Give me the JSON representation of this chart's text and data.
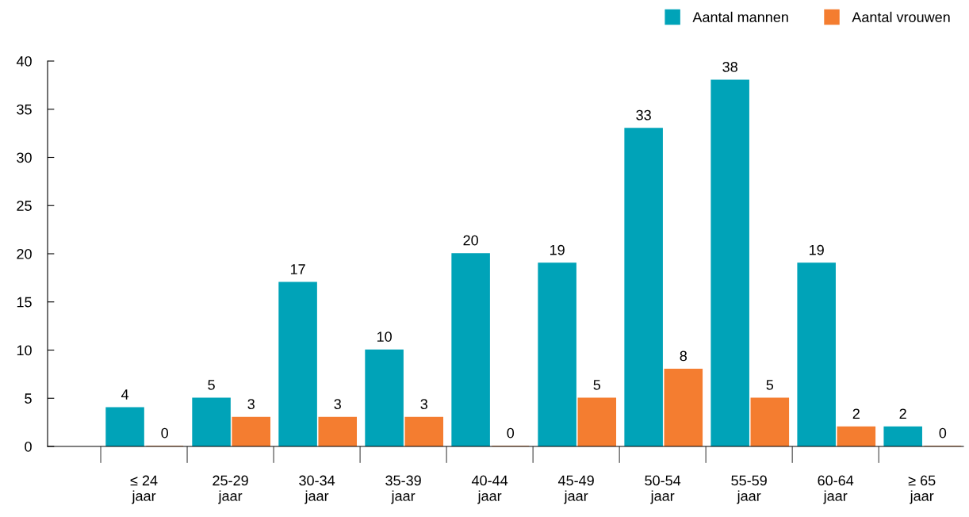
{
  "chart_data": {
    "type": "bar",
    "categories": [
      "≤ 24\njaar",
      "25-29\njaar",
      "30-34\njaar",
      "35-39\njaar",
      "40-44\njaar",
      "45-49\njaar",
      "50-54\njaar",
      "55-59\njaar",
      "60-64\njaar",
      "≥ 65\njaar"
    ],
    "series": [
      {
        "name": "Aantal mannen",
        "color": "#00a3b8",
        "values": [
          4,
          5,
          17,
          10,
          20,
          19,
          33,
          38,
          19,
          2
        ]
      },
      {
        "name": "Aantal vrouwen",
        "color": "#f47d30",
        "values": [
          0,
          3,
          3,
          3,
          0,
          5,
          8,
          5,
          2,
          0
        ]
      }
    ],
    "ylim": [
      0,
      40
    ],
    "yticks": [
      0,
      5,
      10,
      15,
      20,
      25,
      30,
      35,
      40
    ],
    "data_labels": true,
    "grid": false,
    "legend": "top right"
  }
}
